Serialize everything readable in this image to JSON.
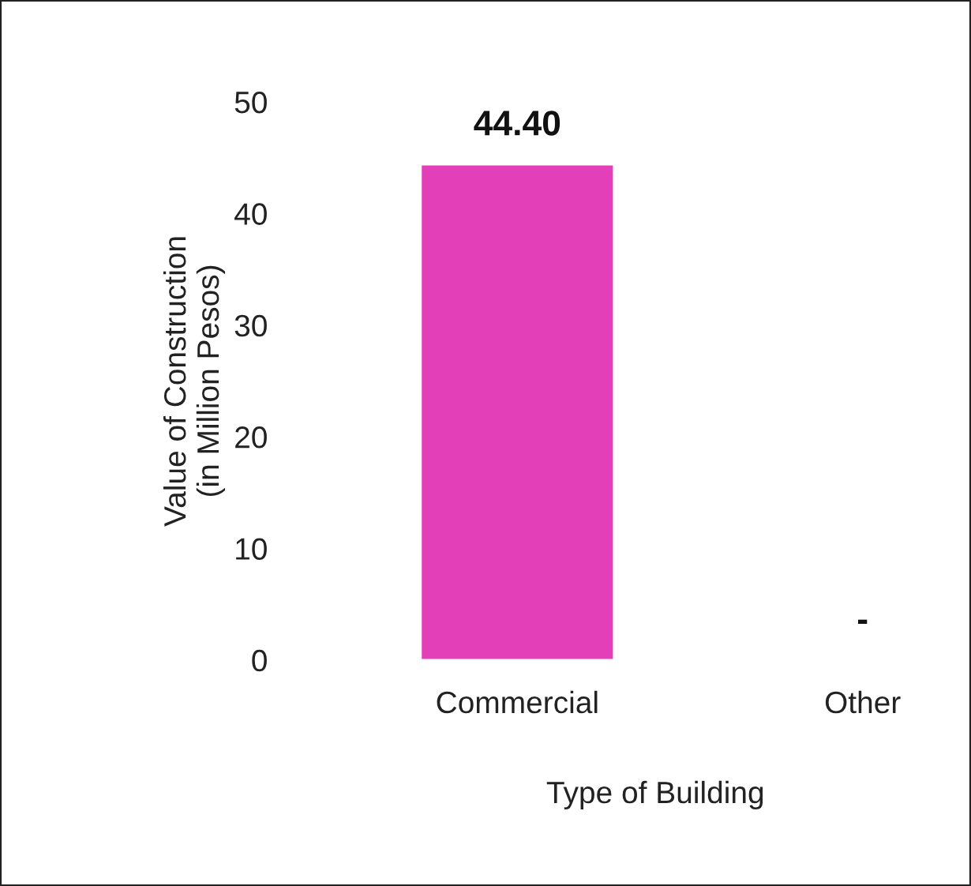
{
  "chart_data": {
    "type": "bar",
    "xlabel": "Type of Building",
    "ylabel": "Value of Construction\n(in Million Pesos)",
    "categories": [
      "Commercial",
      "Other"
    ],
    "values": [
      44.4,
      null
    ],
    "value_labels": [
      "44.40",
      "-"
    ],
    "color": "#e23fb9",
    "ylim": [
      0,
      50
    ],
    "yticks": [
      0,
      10,
      20,
      30,
      40,
      50
    ],
    "grid": false
  }
}
